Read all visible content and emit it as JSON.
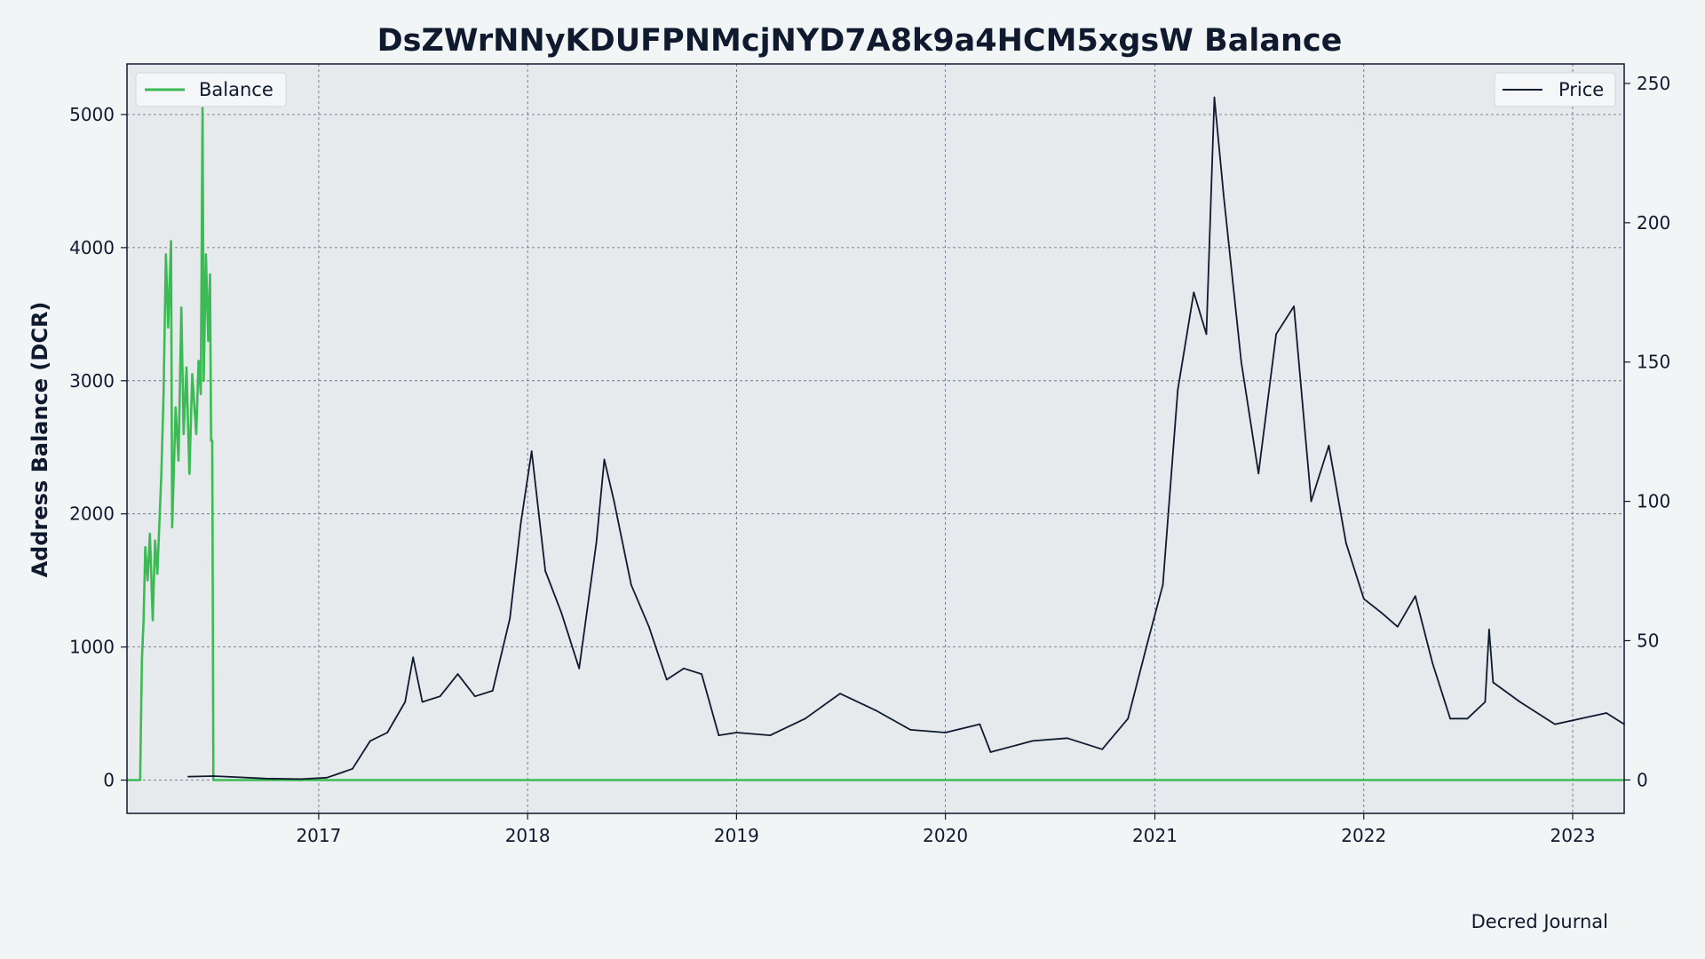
{
  "chart_data": {
    "type": "line",
    "title": "DsZWrNNyKDUFPNMcjNYD7A8k9a4HCM5xgsW Balance",
    "ylabel": "Address Balance (DCR)",
    "y2label": "",
    "watermark": "Decred Journal",
    "x_ticks": [
      "2017",
      "2018",
      "2019",
      "2020",
      "2021",
      "2022",
      "2023"
    ],
    "y_ticks": [
      0,
      1000,
      2000,
      3000,
      4000,
      5000
    ],
    "y2_ticks": [
      0,
      50,
      100,
      150,
      200,
      250
    ],
    "xlim": [
      "2016-02-01",
      "2023-04-01"
    ],
    "ylim": [
      -250,
      5380
    ],
    "y2lim": [
      -12,
      257
    ],
    "grid": true,
    "legend_left_label": "Balance",
    "legend_right_label": "Price",
    "colors": {
      "balance": "#3cba54",
      "price": "#0f1a2e",
      "plot_bg": "#e6eaed",
      "page_bg": "#f2f5f6",
      "grid": "#5a6780"
    },
    "series": [
      {
        "name": "Balance",
        "axis": "left",
        "color": "#3cba54",
        "points": [
          [
            "2016-02-01",
            0
          ],
          [
            "2016-02-24",
            0
          ],
          [
            "2016-02-27",
            900
          ],
          [
            "2016-03-01",
            1200
          ],
          [
            "2016-03-04",
            1750
          ],
          [
            "2016-03-08",
            1500
          ],
          [
            "2016-03-12",
            1850
          ],
          [
            "2016-03-17",
            1200
          ],
          [
            "2016-03-21",
            1800
          ],
          [
            "2016-03-25",
            1550
          ],
          [
            "2016-04-01",
            2300
          ],
          [
            "2016-04-05",
            2900
          ],
          [
            "2016-04-09",
            3950
          ],
          [
            "2016-04-13",
            3400
          ],
          [
            "2016-04-18",
            4050
          ],
          [
            "2016-04-20",
            1900
          ],
          [
            "2016-04-26",
            2800
          ],
          [
            "2016-05-01",
            2400
          ],
          [
            "2016-05-06",
            3550
          ],
          [
            "2016-05-10",
            2600
          ],
          [
            "2016-05-15",
            3100
          ],
          [
            "2016-05-20",
            2300
          ],
          [
            "2016-05-25",
            3050
          ],
          [
            "2016-06-01",
            2600
          ],
          [
            "2016-06-05",
            3150
          ],
          [
            "2016-06-09",
            2900
          ],
          [
            "2016-06-12",
            5050
          ],
          [
            "2016-06-14",
            3000
          ],
          [
            "2016-06-18",
            3950
          ],
          [
            "2016-06-22",
            3300
          ],
          [
            "2016-06-25",
            3800
          ],
          [
            "2016-06-27",
            2550
          ],
          [
            "2016-06-29",
            2550
          ],
          [
            "2016-07-01",
            0
          ],
          [
            "2023-04-01",
            0
          ]
        ]
      },
      {
        "name": "Price",
        "axis": "right",
        "color": "#0f1a2e",
        "points": [
          [
            "2016-05-18",
            1.2
          ],
          [
            "2016-07-01",
            1.4
          ],
          [
            "2016-08-01",
            1.1
          ],
          [
            "2016-10-01",
            0.5
          ],
          [
            "2016-12-01",
            0.3
          ],
          [
            "2017-01-15",
            0.8
          ],
          [
            "2017-02-01",
            2.0
          ],
          [
            "2017-03-01",
            4.0
          ],
          [
            "2017-04-01",
            14.0
          ],
          [
            "2017-05-01",
            17.0
          ],
          [
            "2017-06-01",
            28.0
          ],
          [
            "2017-06-15",
            44.0
          ],
          [
            "2017-07-01",
            28.0
          ],
          [
            "2017-08-01",
            30.0
          ],
          [
            "2017-09-01",
            38.0
          ],
          [
            "2017-10-01",
            30.0
          ],
          [
            "2017-11-01",
            32.0
          ],
          [
            "2017-12-01",
            58.0
          ],
          [
            "2017-12-20",
            92.0
          ],
          [
            "2018-01-08",
            118.0
          ],
          [
            "2018-02-01",
            75.0
          ],
          [
            "2018-03-01",
            60.0
          ],
          [
            "2018-04-01",
            40.0
          ],
          [
            "2018-05-01",
            85.0
          ],
          [
            "2018-05-15",
            115.0
          ],
          [
            "2018-06-01",
            100.0
          ],
          [
            "2018-07-01",
            70.0
          ],
          [
            "2018-08-01",
            55.0
          ],
          [
            "2018-09-01",
            36.0
          ],
          [
            "2018-10-01",
            40.0
          ],
          [
            "2018-11-01",
            38.0
          ],
          [
            "2018-12-01",
            16.0
          ],
          [
            "2019-01-01",
            17.0
          ],
          [
            "2019-03-01",
            16.0
          ],
          [
            "2019-05-01",
            22.0
          ],
          [
            "2019-07-01",
            31.0
          ],
          [
            "2019-09-01",
            25.0
          ],
          [
            "2019-11-01",
            18.0
          ],
          [
            "2020-01-01",
            17.0
          ],
          [
            "2020-03-01",
            20.0
          ],
          [
            "2020-03-20",
            10.0
          ],
          [
            "2020-06-01",
            14.0
          ],
          [
            "2020-08-01",
            15.0
          ],
          [
            "2020-10-01",
            11.0
          ],
          [
            "2020-11-15",
            22.0
          ],
          [
            "2020-12-20",
            50.0
          ],
          [
            "2021-01-15",
            70.0
          ],
          [
            "2021-02-10",
            140.0
          ],
          [
            "2021-03-10",
            175.0
          ],
          [
            "2021-04-01",
            160.0
          ],
          [
            "2021-04-15",
            245.0
          ],
          [
            "2021-05-01",
            210.0
          ],
          [
            "2021-06-01",
            150.0
          ],
          [
            "2021-07-01",
            110.0
          ],
          [
            "2021-08-01",
            160.0
          ],
          [
            "2021-09-01",
            170.0
          ],
          [
            "2021-10-01",
            100.0
          ],
          [
            "2021-11-01",
            120.0
          ],
          [
            "2021-12-01",
            85.0
          ],
          [
            "2022-01-01",
            65.0
          ],
          [
            "2022-02-01",
            60.0
          ],
          [
            "2022-03-01",
            55.0
          ],
          [
            "2022-04-01",
            66.0
          ],
          [
            "2022-05-01",
            42.0
          ],
          [
            "2022-06-01",
            22.0
          ],
          [
            "2022-07-01",
            22.0
          ],
          [
            "2022-08-01",
            28.0
          ],
          [
            "2022-08-08",
            54.0
          ],
          [
            "2022-08-15",
            35.0
          ],
          [
            "2022-10-01",
            28.0
          ],
          [
            "2022-12-01",
            20.0
          ],
          [
            "2023-01-15",
            22.0
          ],
          [
            "2023-03-01",
            24.0
          ],
          [
            "2023-04-01",
            20.0
          ]
        ]
      }
    ]
  }
}
